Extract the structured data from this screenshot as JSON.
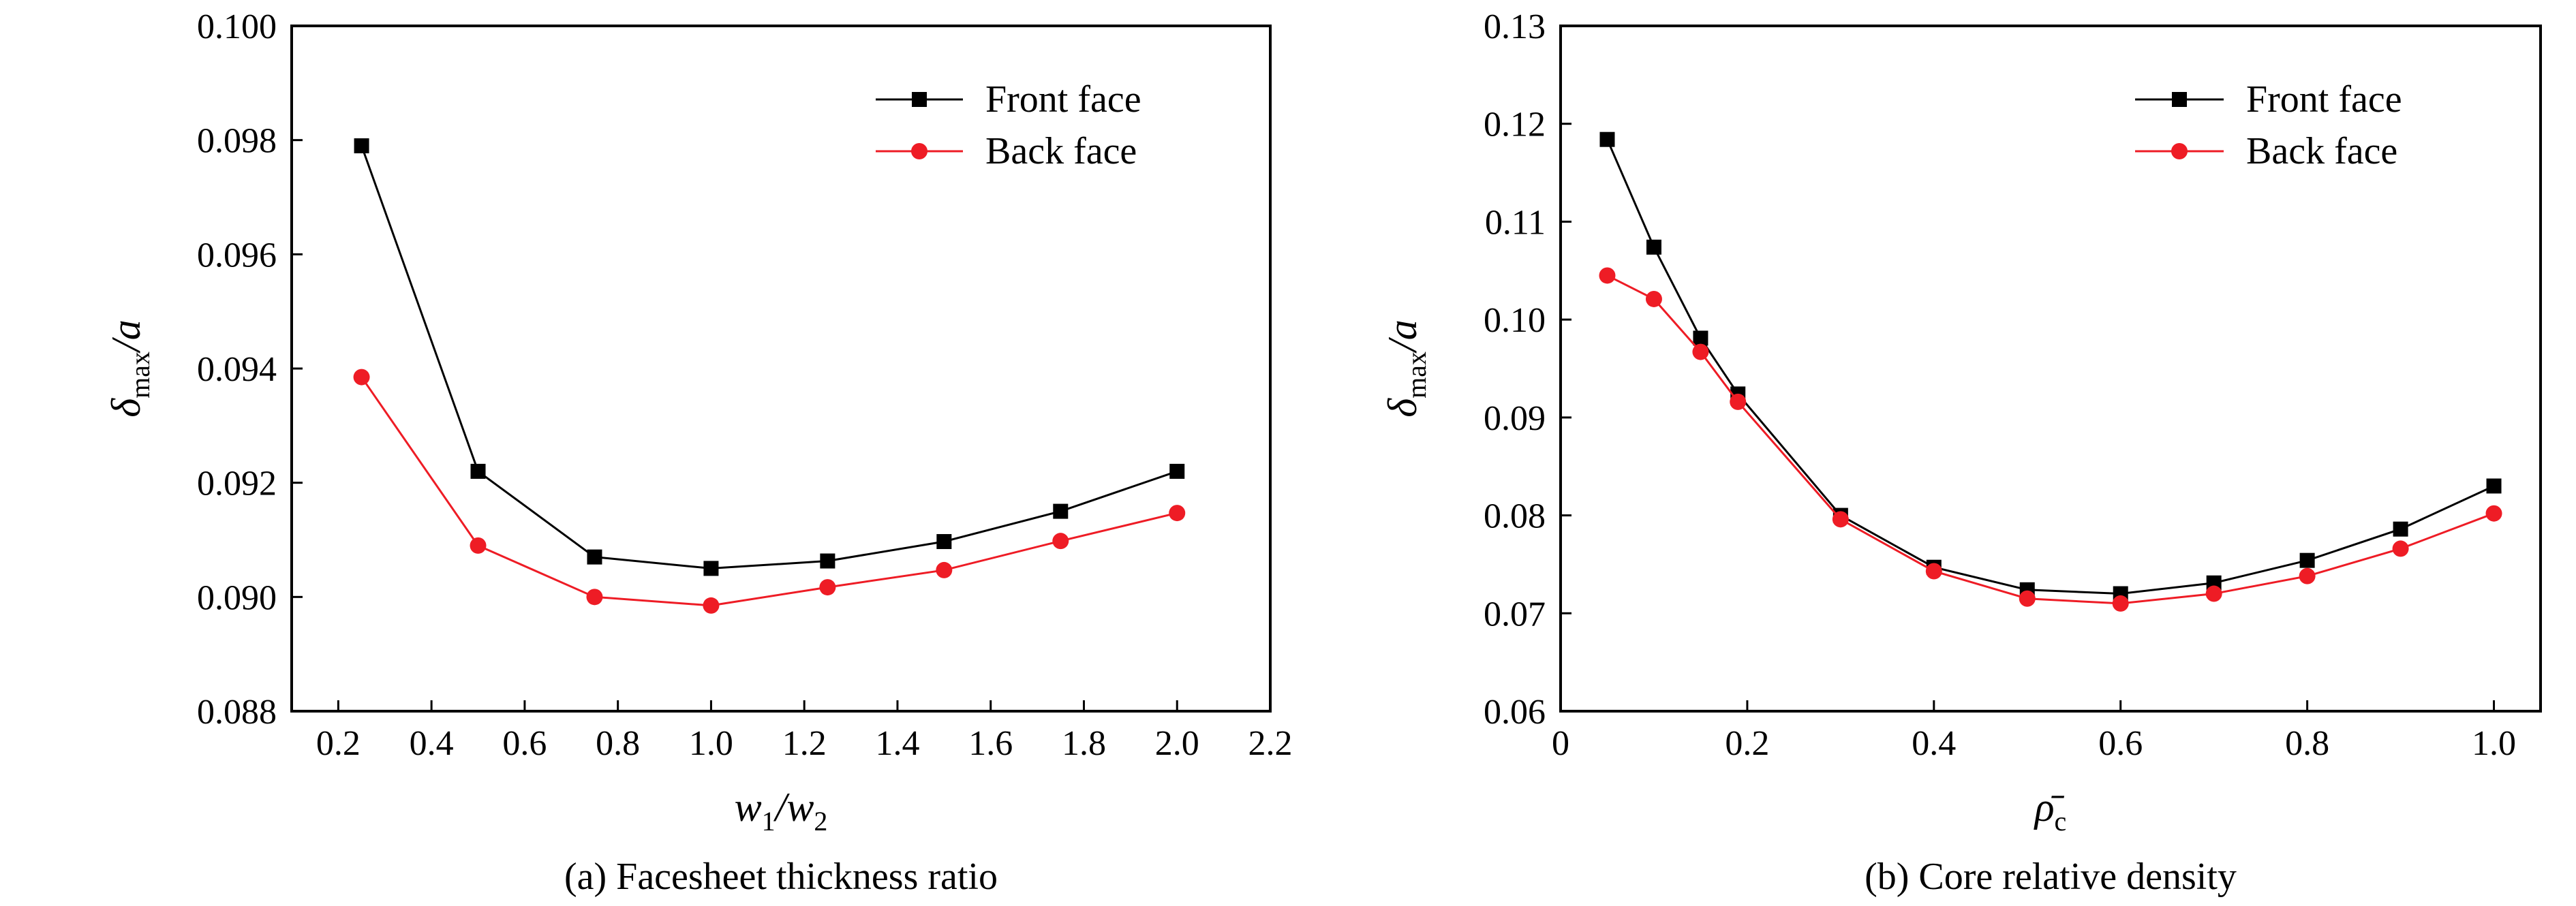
{
  "chart_data": [
    {
      "type": "line",
      "caption": "(a) Facesheet thickness ratio",
      "xlabel": {
        "main1": "w",
        "sub1": "1",
        "slash": "/",
        "main2": "w",
        "sub2": "2"
      },
      "ylabel": {
        "main": "δ",
        "sub": "max",
        "rest": "/a"
      },
      "xlim": [
        0.1,
        2.2
      ],
      "ylim": [
        0.088,
        0.1
      ],
      "xticks": [
        "0.2",
        "0.4",
        "0.6",
        "0.8",
        "1.0",
        "1.2",
        "1.4",
        "1.6",
        "1.8",
        "2.0",
        "2.2"
      ],
      "yticks": [
        "0.088",
        "0.090",
        "0.092",
        "0.094",
        "0.096",
        "0.098",
        "0.100"
      ],
      "x": [
        0.25,
        0.5,
        0.75,
        1.0,
        1.25,
        1.5,
        1.75,
        2.0
      ],
      "series": [
        {
          "name": "Front face",
          "color": "#000000",
          "marker": "square",
          "values": [
            0.0979,
            0.0922,
            0.0907,
            0.0905,
            0.09063,
            0.09097,
            0.0915,
            0.0922
          ]
        },
        {
          "name": "Back face",
          "color": "#ee1c25",
          "marker": "circle",
          "values": [
            0.09385,
            0.0909,
            0.09,
            0.08985,
            0.09017,
            0.09047,
            0.09098,
            0.09147
          ]
        }
      ],
      "legend": "top-right"
    },
    {
      "type": "line",
      "caption": "(b) Core relative density",
      "xlabel": {
        "main": "ρ̄",
        "sub": "c"
      },
      "ylabel": {
        "main": "δ",
        "sub": "max",
        "rest": "/a"
      },
      "xlim": [
        0,
        1.05
      ],
      "ylim": [
        0.06,
        0.13
      ],
      "xticks": [
        "0",
        "0.2",
        "0.4",
        "0.6",
        "0.8",
        "1.0"
      ],
      "yticks": [
        "0.06",
        "0.07",
        "0.08",
        "0.09",
        "0.10",
        "0.11",
        "0.12",
        "0.13"
      ],
      "x": [
        0.05,
        0.1,
        0.15,
        0.19,
        0.3,
        0.4,
        0.5,
        0.6,
        0.7,
        0.8,
        0.9,
        1.0
      ],
      "series": [
        {
          "name": "Front face",
          "color": "#000000",
          "marker": "square",
          "values": [
            0.1184,
            0.1074,
            0.0981,
            0.0924,
            0.08,
            0.0747,
            0.0724,
            0.072,
            0.0731,
            0.0754,
            0.0786,
            0.083
          ]
        },
        {
          "name": "Back face",
          "color": "#ee1c25",
          "marker": "circle",
          "values": [
            0.1045,
            0.1021,
            0.0967,
            0.0916,
            0.0796,
            0.0743,
            0.0715,
            0.071,
            0.072,
            0.0738,
            0.0766,
            0.0802
          ]
        }
      ],
      "legend": "top-right"
    }
  ]
}
